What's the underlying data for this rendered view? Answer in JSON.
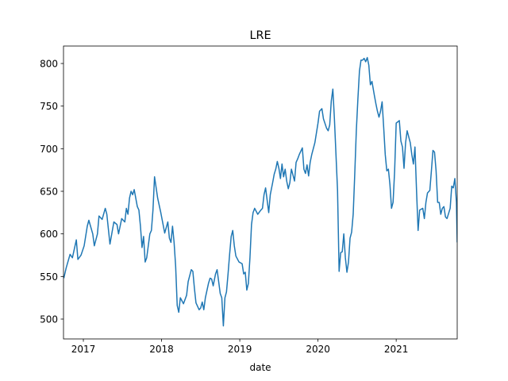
{
  "chart_data": {
    "type": "line",
    "title": "LRE",
    "x_label": "date",
    "x": [
      2016.75,
      2016.78,
      2016.83,
      2016.86,
      2016.91,
      2016.93,
      2016.97,
      2017.01,
      2017.05,
      2017.07,
      2017.12,
      2017.14,
      2017.18,
      2017.2,
      2017.24,
      2017.28,
      2017.3,
      2017.34,
      2017.39,
      2017.43,
      2017.45,
      2017.49,
      2017.53,
      2017.55,
      2017.57,
      2017.59,
      2017.61,
      2017.63,
      2017.65,
      2017.69,
      2017.71,
      2017.73,
      2017.75,
      2017.77,
      2017.79,
      2017.81,
      2017.85,
      2017.87,
      2017.89,
      2017.91,
      2017.95,
      2017.99,
      2018.04,
      2018.08,
      2018.1,
      2018.12,
      2018.14,
      2018.16,
      2018.18,
      2018.2,
      2018.22,
      2018.24,
      2018.28,
      2018.32,
      2018.34,
      2018.38,
      2018.4,
      2018.42,
      2018.44,
      2018.48,
      2018.5,
      2018.52,
      2018.54,
      2018.56,
      2018.6,
      2018.62,
      2018.64,
      2018.66,
      2018.69,
      2018.71,
      2018.75,
      2018.77,
      2018.79,
      2018.81,
      2018.83,
      2018.85,
      2018.87,
      2018.89,
      2018.91,
      2018.93,
      2018.95,
      2018.99,
      2019.03,
      2019.05,
      2019.07,
      2019.09,
      2019.11,
      2019.13,
      2019.15,
      2019.17,
      2019.19,
      2019.23,
      2019.27,
      2019.29,
      2019.31,
      2019.33,
      2019.37,
      2019.39,
      2019.42,
      2019.44,
      2019.46,
      2019.48,
      2019.5,
      2019.52,
      2019.54,
      2019.56,
      2019.58,
      2019.6,
      2019.62,
      2019.64,
      2019.66,
      2019.7,
      2019.72,
      2019.74,
      2019.76,
      2019.8,
      2019.82,
      2019.84,
      2019.86,
      2019.88,
      2019.9,
      2019.92,
      2019.96,
      2020.0,
      2020.02,
      2020.05,
      2020.07,
      2020.11,
      2020.13,
      2020.15,
      2020.17,
      2020.19,
      2020.21,
      2020.23,
      2020.25,
      2020.27,
      2020.29,
      2020.31,
      2020.33,
      2020.35,
      2020.37,
      2020.39,
      2020.41,
      2020.43,
      2020.45,
      2020.47,
      2020.49,
      2020.51,
      2020.53,
      2020.55,
      2020.57,
      2020.59,
      2020.61,
      2020.63,
      2020.65,
      2020.67,
      2020.69,
      2020.72,
      2020.74,
      2020.76,
      2020.78,
      2020.8,
      2020.82,
      2020.84,
      2020.86,
      2020.88,
      2020.9,
      2020.92,
      2020.94,
      2020.96,
      2020.98,
      2021.0,
      2021.04,
      2021.06,
      2021.08,
      2021.1,
      2021.12,
      2021.14,
      2021.18,
      2021.2,
      2021.22,
      2021.24,
      2021.26,
      2021.28,
      2021.3,
      2021.34,
      2021.36,
      2021.38,
      2021.4,
      2021.43,
      2021.45,
      2021.47,
      2021.49,
      2021.51,
      2021.53,
      2021.55,
      2021.57,
      2021.59,
      2021.61,
      2021.63,
      2021.65,
      2021.69,
      2021.71,
      2021.73,
      2021.75,
      2021.77,
      2021.78
    ],
    "values": [
      548,
      560,
      576,
      572,
      593,
      570,
      575,
      586,
      609,
      616,
      600,
      586,
      600,
      621,
      617,
      630,
      623,
      588,
      614,
      611,
      600,
      618,
      614,
      630,
      623,
      642,
      650,
      646,
      652,
      632,
      628,
      609,
      584,
      597,
      567,
      572,
      600,
      604,
      628,
      667,
      642,
      625,
      601,
      614,
      595,
      590,
      609,
      590,
      562,
      516,
      508,
      525,
      518,
      528,
      544,
      558,
      556,
      536,
      519,
      511,
      513,
      520,
      511,
      525,
      542,
      548,
      547,
      539,
      553,
      558,
      530,
      525,
      492,
      525,
      532,
      553,
      576,
      597,
      604,
      586,
      574,
      567,
      565,
      553,
      555,
      534,
      542,
      572,
      611,
      625,
      630,
      623,
      628,
      630,
      646,
      654,
      625,
      646,
      660,
      670,
      676,
      685,
      677,
      665,
      682,
      667,
      676,
      662,
      653,
      660,
      676,
      662,
      684,
      688,
      693,
      701,
      676,
      671,
      681,
      668,
      684,
      693,
      707,
      730,
      744,
      747,
      735,
      724,
      721,
      728,
      756,
      770,
      735,
      693,
      651,
      556,
      578,
      579,
      600,
      572,
      555,
      567,
      595,
      602,
      623,
      670,
      721,
      758,
      791,
      804,
      804,
      806,
      802,
      807,
      798,
      775,
      779,
      763,
      753,
      744,
      737,
      744,
      755,
      725,
      693,
      674,
      676,
      658,
      630,
      637,
      674,
      730,
      733,
      709,
      702,
      677,
      707,
      721,
      707,
      693,
      682,
      702,
      651,
      604,
      628,
      630,
      618,
      637,
      648,
      651,
      674,
      698,
      696,
      674,
      637,
      637,
      623,
      630,
      632,
      620,
      618,
      630,
      656,
      654,
      665,
      637,
      590
    ],
    "color": "#1f77b4",
    "xlim": [
      2016.746,
      2021.78
    ],
    "ylim": [
      476.7,
      820.5
    ],
    "xticks": [
      2017,
      2018,
      2019,
      2020,
      2021
    ],
    "yticks": [
      500,
      550,
      600,
      650,
      700,
      750,
      800
    ]
  }
}
